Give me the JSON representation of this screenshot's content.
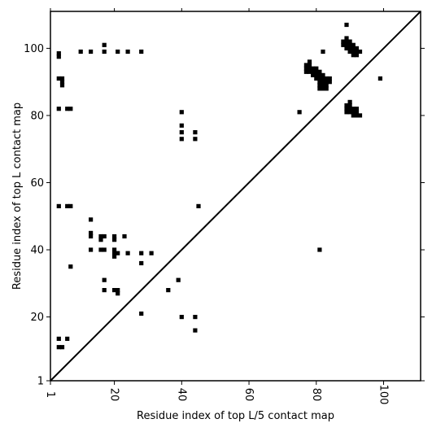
{
  "chart_data": {
    "type": "scatter",
    "title": "",
    "xlabel": "Residue index of top L/5 contact map",
    "ylabel": "Residue index of top L contact map",
    "xlim": [
      1,
      111
    ],
    "ylim": [
      1,
      111
    ],
    "x_ticks": [
      1,
      20,
      40,
      60,
      80,
      100
    ],
    "y_ticks": [
      1,
      20,
      40,
      60,
      80,
      100
    ],
    "grid": false,
    "legend": "none",
    "colors": {
      "marks": "#000000",
      "diagonal": "#000000",
      "background": "#ffffff"
    },
    "diagonal_line": {
      "from": [
        1,
        1
      ],
      "to": [
        111,
        111
      ]
    },
    "series": [
      {
        "values_xy": [
          [
            3.5,
            98.5
          ],
          [
            3.5,
            97.5
          ],
          [
            3.5,
            91
          ],
          [
            4.5,
            91
          ],
          [
            4.5,
            90
          ],
          [
            4.5,
            89
          ],
          [
            3.5,
            82
          ],
          [
            6,
            82
          ],
          [
            7,
            82
          ],
          [
            10,
            99
          ],
          [
            13,
            99
          ],
          [
            17,
            101
          ],
          [
            17,
            99
          ],
          [
            21,
            99
          ],
          [
            24,
            99
          ],
          [
            28,
            99
          ],
          [
            40,
            81
          ],
          [
            40,
            77
          ],
          [
            40,
            75
          ],
          [
            40,
            73
          ],
          [
            44,
            75
          ],
          [
            44,
            73
          ],
          [
            3.5,
            53
          ],
          [
            6,
            53
          ],
          [
            7,
            53
          ],
          [
            13,
            49
          ],
          [
            13,
            45
          ],
          [
            13,
            44
          ],
          [
            13,
            40
          ],
          [
            16,
            44
          ],
          [
            17,
            44
          ],
          [
            16,
            43
          ],
          [
            16,
            40
          ],
          [
            17,
            40
          ],
          [
            20,
            44
          ],
          [
            20,
            43
          ],
          [
            20,
            40
          ],
          [
            20,
            39
          ],
          [
            20,
            38
          ],
          [
            21,
            39
          ],
          [
            23,
            44
          ],
          [
            24,
            39
          ],
          [
            28,
            39
          ],
          [
            31,
            39
          ],
          [
            28,
            36
          ],
          [
            7,
            35
          ],
          [
            17,
            31
          ],
          [
            39,
            31
          ],
          [
            17,
            28
          ],
          [
            20,
            28
          ],
          [
            21,
            28
          ],
          [
            21,
            27
          ],
          [
            36,
            28
          ],
          [
            28,
            21
          ],
          [
            40,
            20
          ],
          [
            44,
            20
          ],
          [
            44,
            16
          ],
          [
            45,
            53
          ],
          [
            3.5,
            13.5
          ],
          [
            6,
            13.5
          ],
          [
            3.5,
            11
          ],
          [
            4.5,
            11
          ],
          [
            75,
            81
          ],
          [
            82,
            99
          ],
          [
            89,
            107
          ],
          [
            99,
            91
          ],
          [
            81,
            40
          ],
          [
            78,
            96
          ],
          [
            78,
            95
          ],
          [
            77,
            95
          ],
          [
            77,
            94
          ],
          [
            77,
            93
          ],
          [
            78,
            94
          ],
          [
            78,
            93
          ],
          [
            79,
            94
          ],
          [
            79,
            93
          ],
          [
            79,
            92
          ],
          [
            80,
            94
          ],
          [
            80,
            93
          ],
          [
            80,
            92
          ],
          [
            80,
            91
          ],
          [
            81,
            93
          ],
          [
            81,
            92
          ],
          [
            81,
            91
          ],
          [
            81,
            90
          ],
          [
            82,
            92
          ],
          [
            82,
            91
          ],
          [
            82,
            90
          ],
          [
            82,
            89
          ],
          [
            82,
            88
          ],
          [
            83,
            91
          ],
          [
            83,
            90
          ],
          [
            83,
            89
          ],
          [
            83,
            88
          ],
          [
            84,
            91
          ],
          [
            84,
            90
          ],
          [
            81,
            89
          ],
          [
            81,
            88
          ],
          [
            88,
            102
          ],
          [
            88,
            101
          ],
          [
            89,
            103
          ],
          [
            89,
            102
          ],
          [
            89,
            101
          ],
          [
            89,
            100
          ],
          [
            90,
            102
          ],
          [
            90,
            101
          ],
          [
            90,
            100
          ],
          [
            90,
            99
          ],
          [
            91,
            101
          ],
          [
            91,
            100
          ],
          [
            91,
            99
          ],
          [
            91,
            98
          ],
          [
            92,
            100
          ],
          [
            92,
            99
          ],
          [
            92,
            98
          ],
          [
            93,
            99
          ],
          [
            90,
            84
          ],
          [
            89,
            83
          ],
          [
            89,
            82
          ],
          [
            90,
            83
          ],
          [
            90,
            82
          ],
          [
            89,
            81
          ],
          [
            90,
            81
          ],
          [
            91,
            82
          ],
          [
            92,
            82
          ],
          [
            91,
            81
          ],
          [
            92,
            81
          ],
          [
            91,
            80
          ],
          [
            92,
            80
          ],
          [
            93,
            80
          ]
        ]
      }
    ]
  }
}
